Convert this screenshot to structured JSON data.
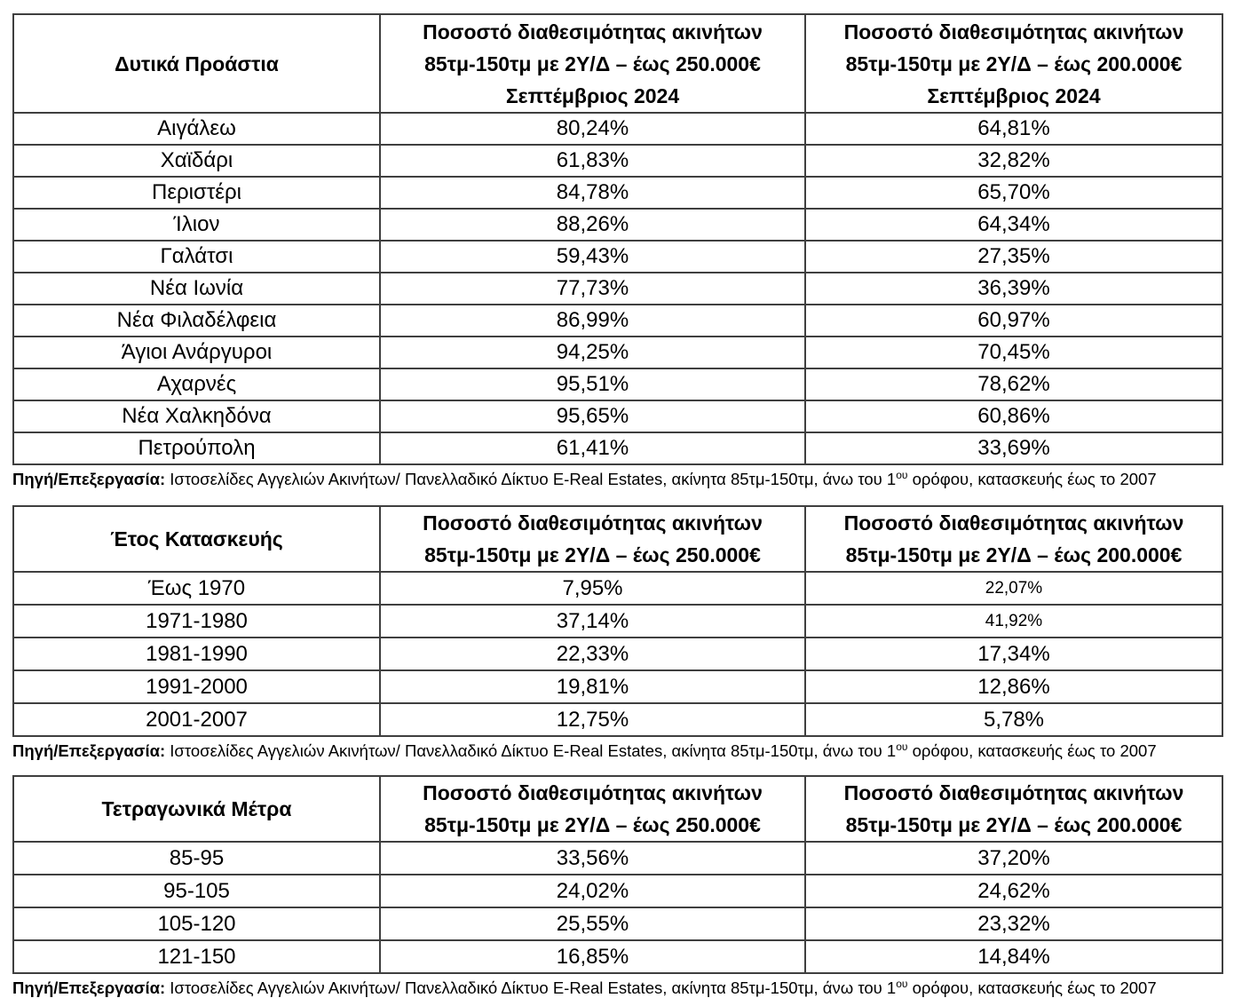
{
  "source_note": {
    "label": "Πηγή/Επεξεργασία:",
    "before_sup": " Ιστοσελίδες Αγγελιών Ακινήτων/ Πανελλαδικό Δίκτυο E-Real Estates, ακίνητα 85τμ-150τμ,  άνω του 1",
    "sup": "ου",
    "after_sup": " ορόφου, κατασκευής έως το 2007"
  },
  "colors": {
    "border": "#3f3f3f",
    "text": "#000000",
    "background": "#ffffff"
  },
  "tables": [
    {
      "title": "Δυτικά Προάστια",
      "col2_header": {
        "line1": "Ποσοστό διαθεσιμότητας ακινήτων",
        "line2": "85τμ-150τμ με 2Υ/Δ – έως 250.000€",
        "line3": "Σεπτέμβριος 2024"
      },
      "col3_header": {
        "line1": "Ποσοστό διαθεσιμότητας ακινήτων",
        "line2": "85τμ-150τμ με 2Υ/Δ – έως 200.000€",
        "line3": "Σεπτέμβριος 2024"
      },
      "rows": [
        {
          "label": "Αιγάλεω",
          "v250": "80,24%",
          "v200": "64,81%"
        },
        {
          "label": "Χαϊδάρι",
          "v250": "61,83%",
          "v200": "32,82%"
        },
        {
          "label": "Περιστέρι",
          "v250": "84,78%",
          "v200": "65,70%"
        },
        {
          "label": "Ίλιον",
          "v250": "88,26%",
          "v200": "64,34%"
        },
        {
          "label": "Γαλάτσι",
          "v250": "59,43%",
          "v200": "27,35%"
        },
        {
          "label": "Νέα Ιωνία",
          "v250": "77,73%",
          "v200": "36,39%"
        },
        {
          "label": "Νέα Φιλαδέλφεια",
          "v250": "86,99%",
          "v200": "60,97%"
        },
        {
          "label": "Άγιοι Ανάργυροι",
          "v250": "94,25%",
          "v200": "70,45%"
        },
        {
          "label": "Αχαρνές",
          "v250": "95,51%",
          "v200": "78,62%"
        },
        {
          "label": "Νέα Χαλκηδόνα",
          "v250": "95,65%",
          "v200": "60,86%"
        },
        {
          "label": "Πετρούπολη",
          "v250": "61,41%",
          "v200": "33,69%"
        }
      ]
    },
    {
      "title": "Έτος Κατασκευής",
      "col2_header": {
        "line1": "Ποσοστό διαθεσιμότητας ακινήτων",
        "line2": "85τμ-150τμ με 2Υ/Δ – έως 250.000€"
      },
      "col3_header": {
        "line1": "Ποσοστό διαθεσιμότητας ακινήτων",
        "line2": "85τμ-150τμ με 2Υ/Δ – έως 200.000€"
      },
      "rows": [
        {
          "label": "Έως 1970",
          "v250": "7,95%",
          "v200": "22,07%"
        },
        {
          "label": "1971-1980",
          "v250": "37,14%",
          "v200": "41,92%"
        },
        {
          "label": "1981-1990",
          "v250": "22,33%",
          "v200": "17,34%"
        },
        {
          "label": "1991-2000",
          "v250": "19,81%",
          "v200": "12,86%"
        },
        {
          "label": "2001-2007",
          "v250": "12,75%",
          "v200": "5,78%"
        }
      ]
    },
    {
      "title": "Τετραγωνικά Μέτρα",
      "col2_header": {
        "line1": "Ποσοστό διαθεσιμότητας ακινήτων",
        "line2": "85τμ-150τμ με 2Υ/Δ – έως 250.000€"
      },
      "col3_header": {
        "line1": "Ποσοστό διαθεσιμότητας ακινήτων",
        "line2": "85τμ-150τμ με 2Υ/Δ – έως 200.000€"
      },
      "rows": [
        {
          "label": "85-95",
          "v250": "33,56%",
          "v200": "37,20%"
        },
        {
          "label": "95-105",
          "v250": "24,02%",
          "v200": "24,62%"
        },
        {
          "label": "105-120",
          "v250": "25,55%",
          "v200": "23,32%"
        },
        {
          "label": "121-150",
          "v250": "16,85%",
          "v200": "14,84%"
        }
      ]
    }
  ]
}
